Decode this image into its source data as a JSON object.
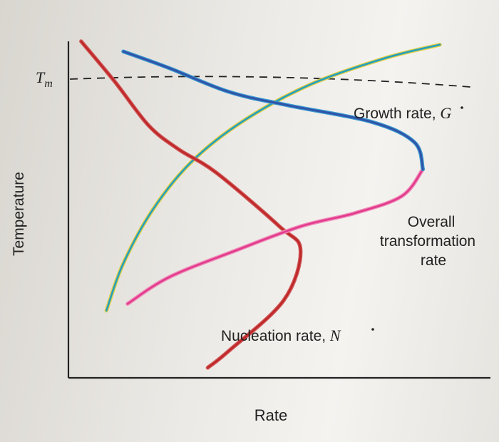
{
  "chart_data": {
    "type": "line",
    "title": "",
    "xlabel": "Rate",
    "ylabel": "Temperature",
    "tm_label": "T",
    "tm_subscript": "m",
    "grid": false,
    "legend": "none",
    "xlim": [
      0,
      100
    ],
    "ylim": [
      0,
      100
    ],
    "series": [
      {
        "key": "growth",
        "label": "Growth rate, ",
        "symbol": "G",
        "color": "#2aa0b8",
        "halo": "#e8d24a",
        "points": [
          [
            9,
            20
          ],
          [
            13,
            34
          ],
          [
            20,
            50
          ],
          [
            29,
            64
          ],
          [
            41,
            76
          ],
          [
            57,
            87
          ],
          [
            75,
            95
          ],
          [
            88,
            99
          ]
        ]
      },
      {
        "key": "nucleation",
        "label": "Nucleation rate, ",
        "symbol": "N",
        "color": "#c0282a",
        "halo": "#d05a5a",
        "points": [
          [
            3,
            100
          ],
          [
            11,
            88
          ],
          [
            19,
            75
          ],
          [
            26,
            68
          ],
          [
            35,
            61
          ],
          [
            50,
            45
          ],
          [
            55,
            38
          ],
          [
            51,
            23
          ],
          [
            38,
            8
          ],
          [
            33,
            3
          ]
        ]
      },
      {
        "key": "overall",
        "label_lines": [
          "Overall",
          "transformation",
          "rate"
        ],
        "color": "#e23a8c",
        "upper_color": "#2f54a8",
        "points": [
          [
            14,
            22
          ],
          [
            24,
            30
          ],
          [
            40,
            38
          ],
          [
            55,
            45
          ],
          [
            68,
            49
          ],
          [
            79,
            54
          ],
          [
            84,
            62
          ],
          [
            82,
            70
          ],
          [
            72,
            76
          ],
          [
            52,
            81
          ],
          [
            38,
            85
          ],
          [
            24,
            92
          ],
          [
            13,
            97
          ]
        ]
      }
    ]
  }
}
